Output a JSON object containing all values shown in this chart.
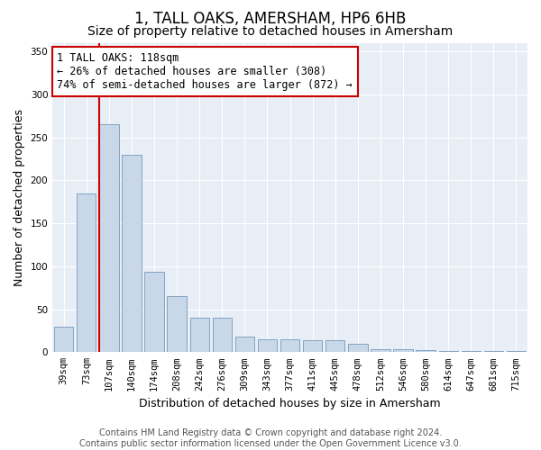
{
  "title": "1, TALL OAKS, AMERSHAM, HP6 6HB",
  "subtitle": "Size of property relative to detached houses in Amersham",
  "xlabel": "Distribution of detached houses by size in Amersham",
  "ylabel": "Number of detached properties",
  "categories": [
    "39sqm",
    "73sqm",
    "107sqm",
    "140sqm",
    "174sqm",
    "208sqm",
    "242sqm",
    "276sqm",
    "309sqm",
    "343sqm",
    "377sqm",
    "411sqm",
    "445sqm",
    "478sqm",
    "512sqm",
    "546sqm",
    "580sqm",
    "614sqm",
    "647sqm",
    "681sqm",
    "715sqm"
  ],
  "values": [
    30,
    185,
    265,
    230,
    93,
    65,
    40,
    40,
    18,
    15,
    15,
    14,
    14,
    10,
    3,
    3,
    2,
    1,
    1,
    1,
    1
  ],
  "bar_color": "#c8d8e8",
  "bar_edge_color": "#7799bb",
  "vline_color": "#cc0000",
  "annotation_text": "1 TALL OAKS: 118sqm\n← 26% of detached houses are smaller (308)\n74% of semi-detached houses are larger (872) →",
  "annotation_box_color": "#ffffff",
  "annotation_box_edge": "#cc0000",
  "ylim": [
    0,
    360
  ],
  "yticks": [
    0,
    50,
    100,
    150,
    200,
    250,
    300,
    350
  ],
  "plot_bg_color": "#e8eef6",
  "footer_text": "Contains HM Land Registry data © Crown copyright and database right 2024.\nContains public sector information licensed under the Open Government Licence v3.0.",
  "title_fontsize": 12,
  "subtitle_fontsize": 10,
  "axis_label_fontsize": 9,
  "tick_fontsize": 7.5,
  "annotation_fontsize": 8.5,
  "footer_fontsize": 7
}
